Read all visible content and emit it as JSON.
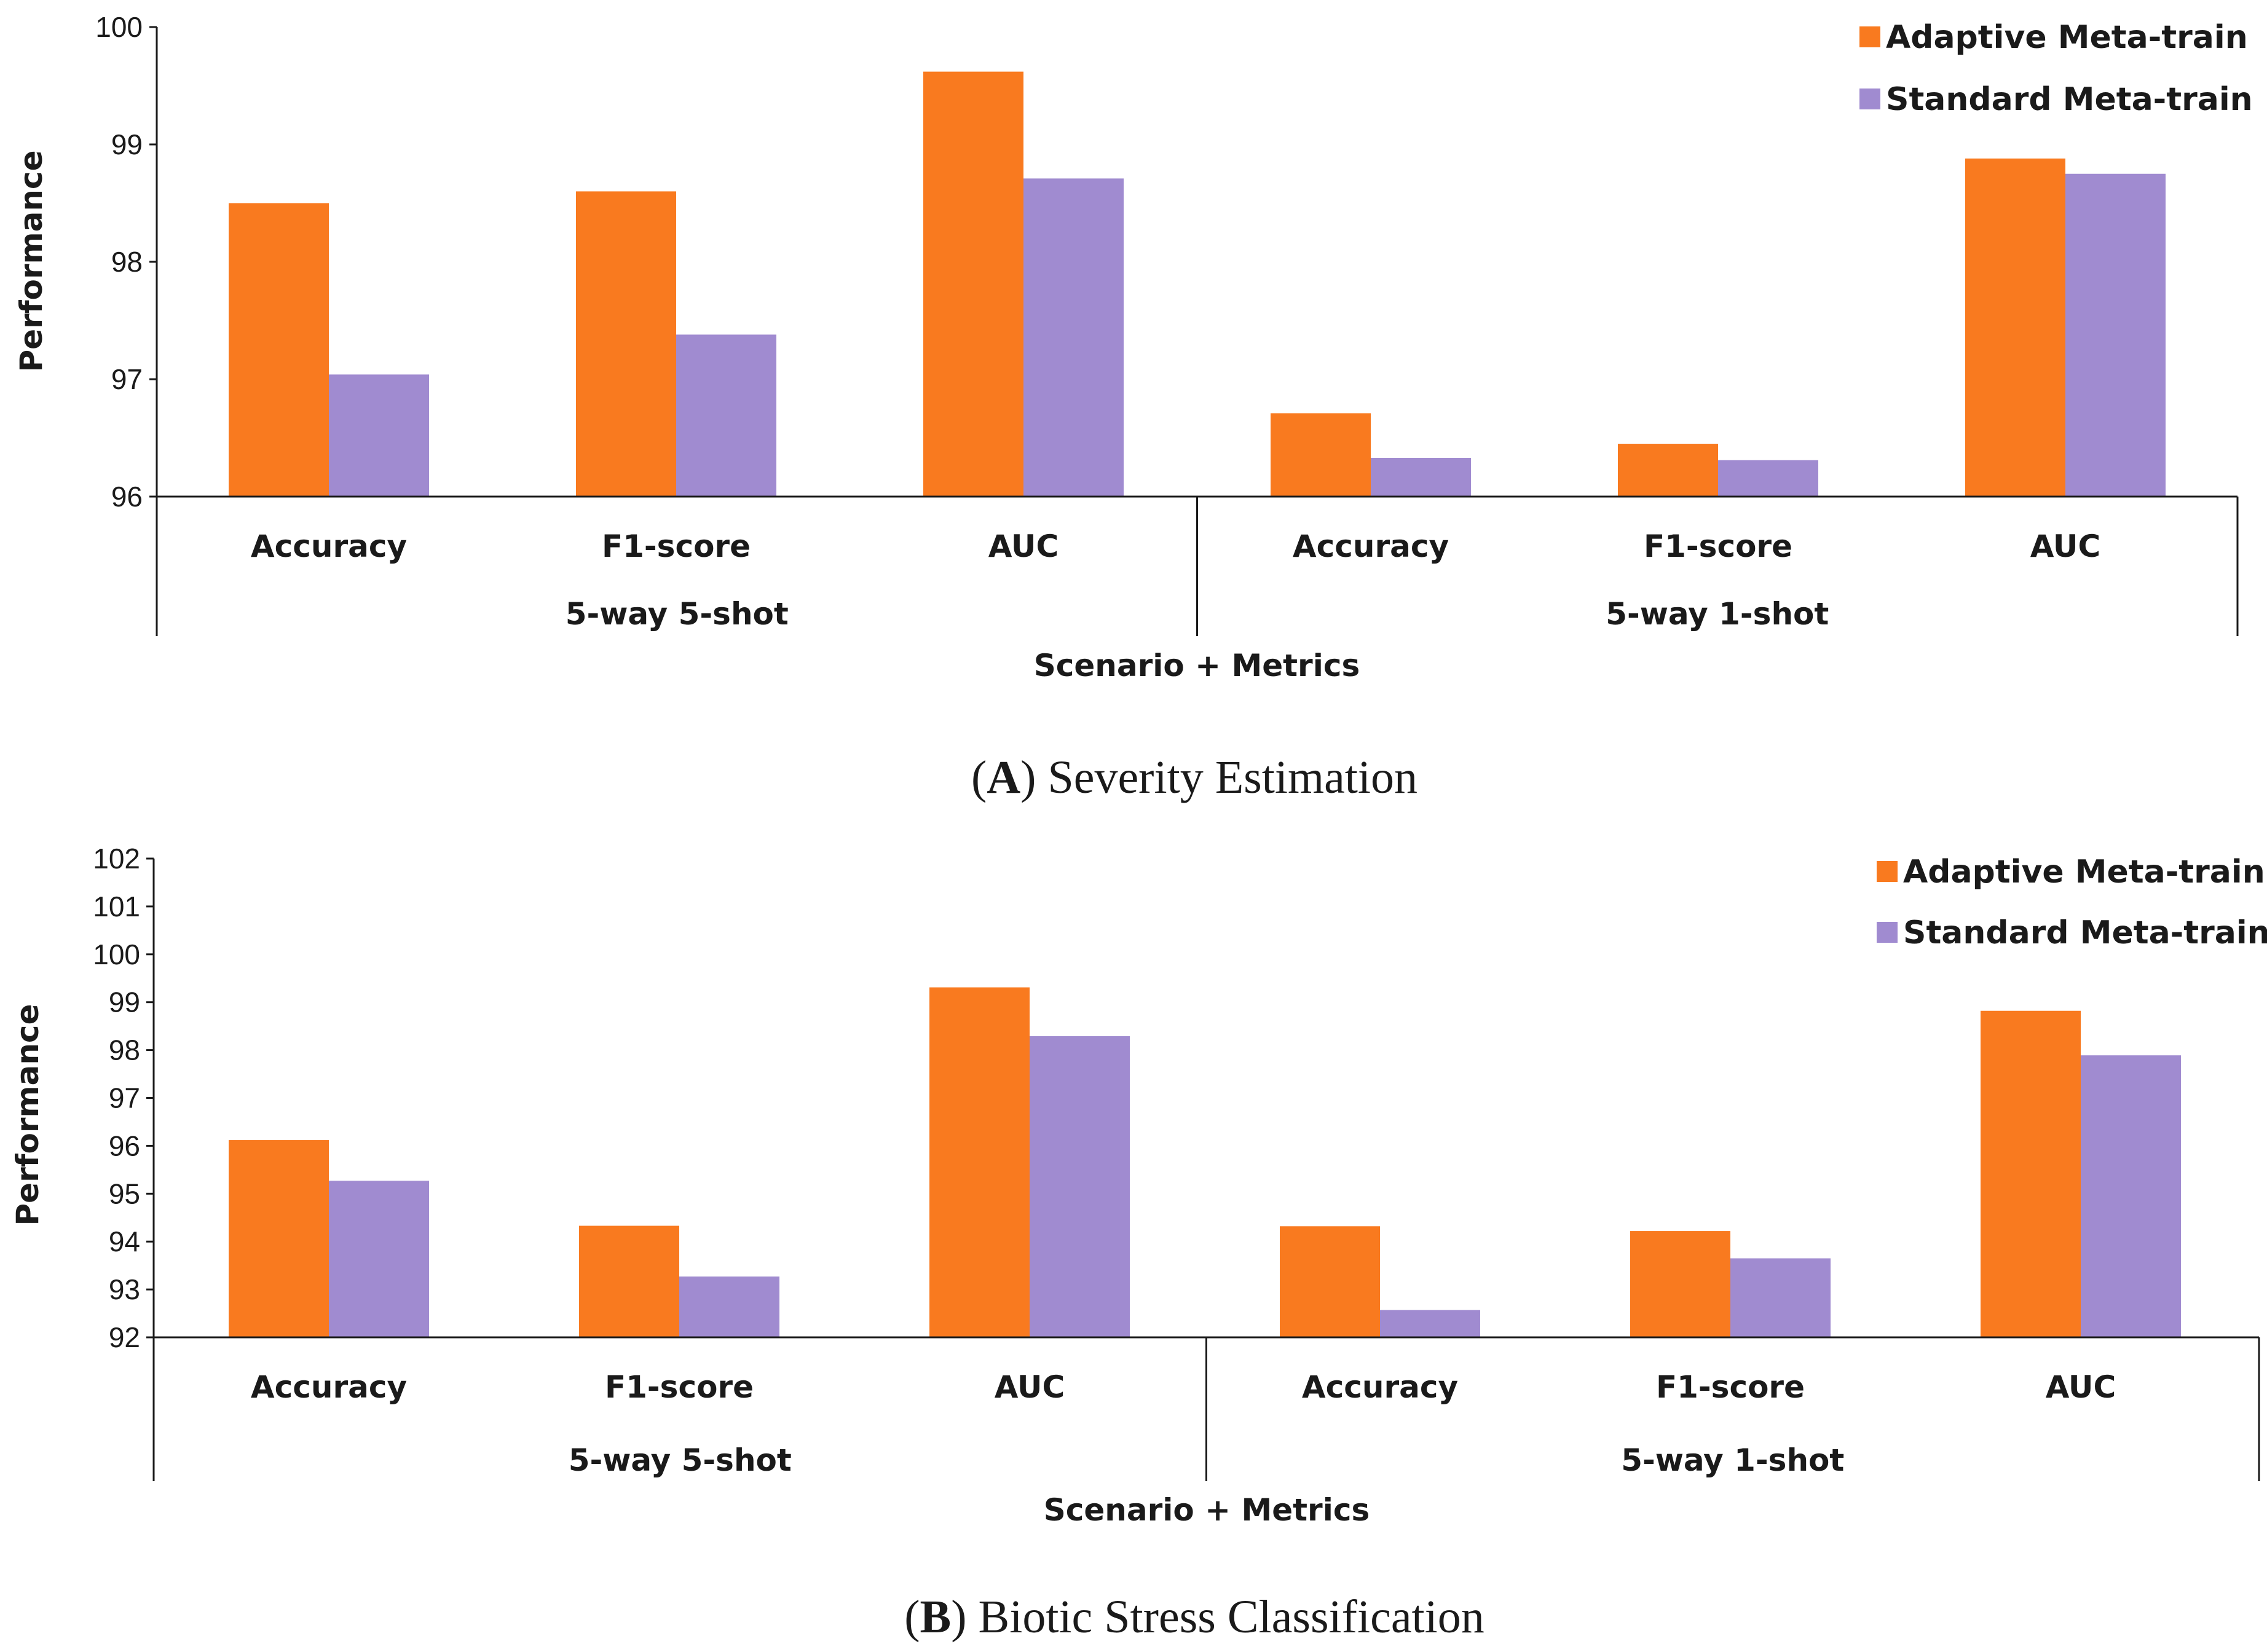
{
  "colors": {
    "adaptive": "#f97a1f",
    "standard": "#a08bd0"
  },
  "chart_data": [
    {
      "type": "bar",
      "caption_letter": "A",
      "caption_text": " Severity Estimation",
      "ylabel": "Performance",
      "xlabel": "Scenario + Metrics",
      "ylim": [
        96,
        100
      ],
      "yticks": [
        96,
        97,
        98,
        99,
        100
      ],
      "groups": [
        {
          "label": "5-way 5-shot",
          "categories": [
            "Accuracy",
            "F1-score",
            "AUC"
          ]
        },
        {
          "label": "5-way 1-shot",
          "categories": [
            "Accuracy",
            "F1-score",
            "AUC"
          ]
        }
      ],
      "series": [
        {
          "name": "Adaptive Meta-train",
          "values": [
            98.5,
            98.6,
            99.62,
            96.71,
            96.45,
            98.88
          ]
        },
        {
          "name": "Standard Meta-train",
          "values": [
            97.04,
            97.38,
            98.71,
            96.33,
            96.31,
            98.75
          ]
        }
      ],
      "legend_position": "top-right"
    },
    {
      "type": "bar",
      "caption_letter": "B",
      "caption_text": " Biotic Stress Classification",
      "ylabel": "Performance",
      "xlabel": "Scenario + Metrics",
      "ylim": [
        92,
        102
      ],
      "yticks": [
        92,
        93,
        94,
        95,
        96,
        97,
        98,
        99,
        100,
        101,
        102
      ],
      "groups": [
        {
          "label": "5-way 5-shot",
          "categories": [
            "Accuracy",
            "F1-score",
            "AUC"
          ]
        },
        {
          "label": "5-way 1-shot",
          "categories": [
            "Accuracy",
            "F1-score",
            "AUC"
          ]
        }
      ],
      "series": [
        {
          "name": "Adaptive Meta-train",
          "values": [
            96.12,
            94.33,
            99.31,
            94.32,
            94.22,
            98.82
          ]
        },
        {
          "name": "Standard Meta-train",
          "values": [
            95.27,
            93.27,
            98.29,
            92.57,
            93.65,
            97.89
          ]
        }
      ],
      "legend_position": "top-right"
    }
  ]
}
